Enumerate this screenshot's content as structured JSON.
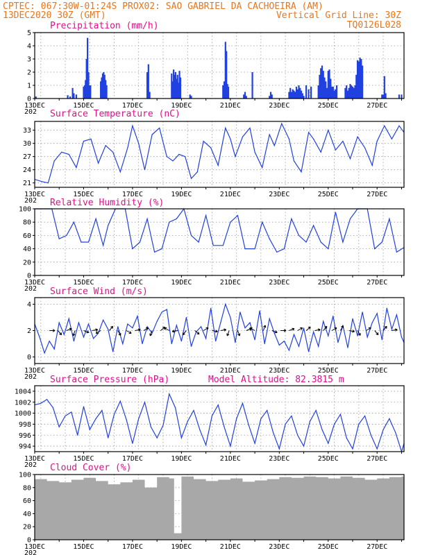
{
  "header": {
    "line1": "CPTEC:  067:30W-01:24S  PROX02: SAO GABRIEL DA CACHOEIRA (AM)",
    "line2_left": "13DEC2020 30Z (GMT)",
    "line2_right": "Vertical Grid Line: 30Z",
    "line3_right": "TQ0126L028"
  },
  "colors": {
    "header": "#e8761c",
    "title": "#e0108a",
    "series": "#2040e0",
    "cloud": "#a8a8a8",
    "grid": "#9a9a9a"
  },
  "x_axis": {
    "range_days": [
      13,
      28.1
    ],
    "tick_labels": [
      "13DEC",
      "15DEC",
      "17DEC",
      "19DEC",
      "21DEC",
      "23DEC",
      "25DEC",
      "27DEC"
    ],
    "year_fragment": "202"
  },
  "chart_data": [
    {
      "type": "bar",
      "title": "Precipitation (mm/h)",
      "ylim": [
        0,
        5
      ],
      "yticks": [
        "0",
        "1",
        "2",
        "3",
        "4",
        "5"
      ],
      "x": [
        13.05,
        14.35,
        14.45,
        14.55,
        14.6,
        14.7,
        15.0,
        15.04,
        15.08,
        15.12,
        15.16,
        15.2,
        15.24,
        15.28,
        15.7,
        15.74,
        15.78,
        15.82,
        15.86,
        15.9,
        15.94,
        17.6,
        17.65,
        17.7,
        18.6,
        18.64,
        18.68,
        18.72,
        18.76,
        18.8,
        18.84,
        18.88,
        18.92,
        18.96,
        19.35,
        19.4,
        20.7,
        20.75,
        20.8,
        20.84,
        20.88,
        20.92,
        21.55,
        21.6,
        21.65,
        21.9,
        22.6,
        22.65,
        22.7,
        23.4,
        23.45,
        23.5,
        23.55,
        23.6,
        23.65,
        23.7,
        23.75,
        23.8,
        23.85,
        23.9,
        23.95,
        24.0,
        24.1,
        24.2,
        24.3,
        24.6,
        24.65,
        24.7,
        24.75,
        24.8,
        24.85,
        24.9,
        24.95,
        25.0,
        25.05,
        25.1,
        25.15,
        25.2,
        25.25,
        25.3,
        25.35,
        25.7,
        25.75,
        25.8,
        25.85,
        25.9,
        25.95,
        26.0,
        26.05,
        26.1,
        26.15,
        26.2,
        26.25,
        26.3,
        26.35,
        26.4,
        27.2,
        27.25,
        27.3,
        27.35,
        27.9,
        28.0
      ],
      "values": [
        0.15,
        0.25,
        0.15,
        0.8,
        0.4,
        0.3,
        0.9,
        1.0,
        1.4,
        3.0,
        4.6,
        2.0,
        1.0,
        1.0,
        1.3,
        1.6,
        1.9,
        2.0,
        1.8,
        1.4,
        1.0,
        2.0,
        2.6,
        0.5,
        1.9,
        1.3,
        2.2,
        1.8,
        2.0,
        1.5,
        1.8,
        1.2,
        2.1,
        1.6,
        0.3,
        0.2,
        1.0,
        1.3,
        4.3,
        3.6,
        1.1,
        0.9,
        0.3,
        0.5,
        0.2,
        2.0,
        0.2,
        0.5,
        0.3,
        0.5,
        0.8,
        0.5,
        0.7,
        0.6,
        0.5,
        0.9,
        0.7,
        1.0,
        0.8,
        0.6,
        0.4,
        0.2,
        1.0,
        0.7,
        0.9,
        1.0,
        1.8,
        2.3,
        2.5,
        2.1,
        1.6,
        1.3,
        0.8,
        2.1,
        2.2,
        1.5,
        0.9,
        0.9,
        0.6,
        0.7,
        1.0,
        0.8,
        1.0,
        0.6,
        0.8,
        1.1,
        1.0,
        0.9,
        0.8,
        1.0,
        1.8,
        2.9,
        2.8,
        3.1,
        3.0,
        2.5,
        0.3,
        0.3,
        1.7,
        0.4,
        0.3,
        0.3
      ],
      "grid": true
    },
    {
      "type": "line",
      "title": "Surface Temperature (nC)",
      "ylim": [
        20,
        35
      ],
      "yticks": [
        "21",
        "24",
        "27",
        "30",
        "33"
      ],
      "x": [
        13.0,
        13.3,
        13.55,
        13.8,
        14.1,
        14.4,
        14.7,
        15.0,
        15.3,
        15.6,
        15.9,
        16.2,
        16.5,
        16.8,
        17.0,
        17.25,
        17.5,
        17.8,
        18.1,
        18.4,
        18.65,
        18.9,
        19.15,
        19.4,
        19.65,
        19.9,
        20.2,
        20.5,
        20.8,
        21.0,
        21.2,
        21.5,
        21.8,
        22.0,
        22.3,
        22.6,
        22.8,
        23.1,
        23.4,
        23.6,
        23.9,
        24.2,
        24.4,
        24.7,
        25.0,
        25.3,
        25.6,
        25.9,
        26.2,
        26.5,
        26.8,
        27.0,
        27.3,
        27.6,
        27.9,
        28.1
      ],
      "values": [
        21.8,
        21.3,
        21.0,
        26.0,
        28.0,
        27.5,
        24.5,
        30.5,
        31.0,
        25.5,
        29.5,
        28.0,
        23.5,
        29.0,
        34.0,
        30.0,
        24.0,
        32.0,
        33.5,
        27.0,
        26.0,
        27.5,
        27.0,
        22.0,
        23.5,
        30.5,
        29.0,
        25.0,
        33.5,
        31.0,
        27.0,
        31.5,
        33.5,
        28.0,
        24.5,
        32.0,
        29.5,
        34.5,
        31.0,
        26.0,
        23.5,
        32.5,
        31.0,
        28.0,
        33.0,
        28.5,
        30.5,
        26.5,
        31.5,
        29.0,
        25.0,
        30.5,
        34.0,
        31.0,
        34.0,
        32.5
      ],
      "grid": true
    },
    {
      "type": "line",
      "title": "Relative Humidity (%)",
      "ylim": [
        0,
        100
      ],
      "yticks": [
        "0",
        "20",
        "40",
        "60",
        "80",
        "100"
      ],
      "x": [
        13.0,
        13.4,
        13.7,
        14.0,
        14.3,
        14.6,
        14.9,
        15.2,
        15.5,
        15.8,
        16.0,
        16.3,
        16.7,
        17.0,
        17.3,
        17.6,
        17.9,
        18.2,
        18.5,
        18.8,
        19.1,
        19.4,
        19.7,
        20.0,
        20.3,
        20.7,
        21.0,
        21.3,
        21.6,
        22.0,
        22.3,
        22.6,
        22.9,
        23.2,
        23.5,
        23.8,
        24.1,
        24.4,
        24.7,
        25.0,
        25.3,
        25.6,
        25.9,
        26.2,
        26.6,
        26.9,
        27.2,
        27.5,
        27.8,
        28.1
      ],
      "values": [
        100,
        100,
        100,
        55,
        60,
        80,
        50,
        50,
        85,
        45,
        75,
        100,
        100,
        40,
        50,
        85,
        35,
        40,
        80,
        85,
        100,
        60,
        50,
        90,
        45,
        45,
        80,
        90,
        40,
        40,
        80,
        55,
        35,
        40,
        85,
        60,
        50,
        75,
        50,
        40,
        95,
        50,
        85,
        100,
        100,
        40,
        50,
        85,
        35,
        42
      ],
      "grid": true
    },
    {
      "type": "line",
      "title": "Surface Wind (m/s)",
      "ylim": [
        -0.5,
        4.5
      ],
      "yticks": [
        "0",
        "2",
        "4"
      ],
      "x": [
        13.0,
        13.2,
        13.4,
        13.6,
        13.8,
        14.0,
        14.2,
        14.4,
        14.6,
        14.8,
        15.0,
        15.2,
        15.4,
        15.6,
        15.8,
        16.0,
        16.2,
        16.4,
        16.6,
        16.8,
        17.0,
        17.2,
        17.4,
        17.6,
        17.8,
        18.0,
        18.2,
        18.4,
        18.6,
        18.8,
        19.0,
        19.2,
        19.4,
        19.6,
        19.8,
        20.0,
        20.2,
        20.4,
        20.6,
        20.8,
        21.0,
        21.2,
        21.4,
        21.6,
        21.8,
        22.0,
        22.2,
        22.4,
        22.6,
        22.8,
        23.0,
        23.2,
        23.4,
        23.6,
        23.8,
        24.0,
        24.2,
        24.4,
        24.6,
        24.8,
        25.0,
        25.2,
        25.4,
        25.6,
        25.8,
        26.0,
        26.2,
        26.4,
        26.6,
        26.8,
        27.0,
        27.2,
        27.4,
        27.6,
        27.8,
        28.0,
        28.1
      ],
      "values": [
        2.5,
        1.5,
        0.3,
        1.2,
        0.6,
        2.6,
        1.7,
        2.9,
        1.2,
        2.6,
        1.5,
        2.5,
        1.4,
        1.8,
        2.8,
        2.1,
        0.4,
        2.3,
        1.0,
        2.5,
        2.2,
        3.1,
        1.0,
        2.3,
        1.8,
        2.7,
        3.4,
        3.6,
        1.0,
        2.4,
        1.2,
        3.0,
        0.8,
        1.9,
        2.3,
        1.4,
        3.7,
        1.2,
        2.6,
        4.0,
        3.0,
        1.1,
        3.4,
        2.2,
        2.6,
        1.3,
        3.5,
        1.0,
        2.9,
        1.8,
        0.9,
        1.2,
        0.5,
        1.7,
        0.8,
        2.2,
        0.4,
        1.9,
        0.8,
        2.7,
        1.6,
        3.1,
        1.1,
        2.4,
        0.7,
        2.9,
        1.6,
        3.4,
        1.5,
        2.6,
        3.3,
        1.3,
        3.7,
        2.1,
        3.2,
        1.5,
        1.1
      ],
      "arrows_deg": [
        90,
        140,
        70,
        200,
        110,
        80,
        240,
        40,
        150,
        120,
        80,
        60,
        200,
        50,
        300,
        260,
        220,
        130,
        60,
        100,
        80,
        200,
        160,
        70,
        300,
        20,
        110,
        90,
        70,
        60,
        50,
        80,
        40,
        60,
        30,
        100,
        150,
        60,
        140,
        40,
        80
      ],
      "grid": true
    },
    {
      "type": "line",
      "title": "Surface Pressure (hPa)",
      "subtitle": "Model Altitude: 82.3815 m",
      "ylim": [
        993,
        1005
      ],
      "yticks": [
        "994",
        "996",
        "998",
        "1000",
        "1002",
        "1004"
      ],
      "x": [
        13.0,
        13.25,
        13.5,
        13.75,
        14.0,
        14.25,
        14.5,
        14.75,
        15.0,
        15.25,
        15.5,
        15.75,
        16.0,
        16.25,
        16.5,
        16.75,
        17.0,
        17.25,
        17.5,
        17.75,
        18.0,
        18.25,
        18.5,
        18.75,
        19.0,
        19.25,
        19.5,
        19.75,
        20.0,
        20.25,
        20.5,
        20.75,
        21.0,
        21.25,
        21.5,
        21.75,
        22.0,
        22.25,
        22.5,
        22.75,
        23.0,
        23.25,
        23.5,
        23.75,
        24.0,
        24.25,
        24.5,
        24.75,
        25.0,
        25.25,
        25.5,
        25.75,
        26.0,
        26.25,
        26.5,
        26.75,
        27.0,
        27.25,
        27.5,
        27.75,
        28.0,
        28.1
      ],
      "values": [
        1001.5,
        1001.8,
        1002.5,
        1001.0,
        997.5,
        999.5,
        1000.2,
        996.0,
        1001.2,
        997.0,
        999.0,
        1000.5,
        995.5,
        999.8,
        1002.2,
        998.8,
        994.5,
        999.0,
        1002.0,
        997.5,
        995.5,
        997.8,
        1003.5,
        1001.0,
        995.5,
        998.5,
        1000.5,
        997.0,
        994.2,
        999.5,
        1001.5,
        997.5,
        994.0,
        999.0,
        1001.8,
        997.8,
        994.5,
        999.0,
        1000.5,
        996.5,
        993.5,
        998.0,
        999.5,
        996.0,
        994.0,
        998.5,
        1000.5,
        997.0,
        994.5,
        998.0,
        999.8,
        995.5,
        993.5,
        998.0,
        999.5,
        996.0,
        993.5,
        997.0,
        999.0,
        996.5,
        993.0,
        994.5
      ],
      "grid": true
    },
    {
      "type": "bar",
      "title": "Cloud Cover (%)",
      "ylim": [
        0,
        100
      ],
      "yticks": [
        "0",
        "20",
        "40",
        "60",
        "80",
        "100"
      ],
      "x": [
        13.0,
        13.5,
        14.0,
        14.5,
        15.0,
        15.5,
        16.0,
        16.5,
        17.0,
        17.5,
        18.0,
        18.5,
        18.7,
        19.0,
        19.5,
        20.0,
        20.5,
        21.0,
        21.5,
        22.0,
        22.5,
        23.0,
        23.5,
        24.0,
        24.5,
        25.0,
        25.5,
        26.0,
        26.5,
        27.0,
        27.5,
        28.0
      ],
      "values": [
        93,
        90,
        88,
        92,
        95,
        90,
        85,
        88,
        92,
        80,
        96,
        94,
        10,
        97,
        93,
        90,
        92,
        94,
        89,
        91,
        93,
        96,
        95,
        97,
        96,
        94,
        97,
        95,
        92,
        94,
        96,
        97
      ],
      "grid": true
    }
  ]
}
